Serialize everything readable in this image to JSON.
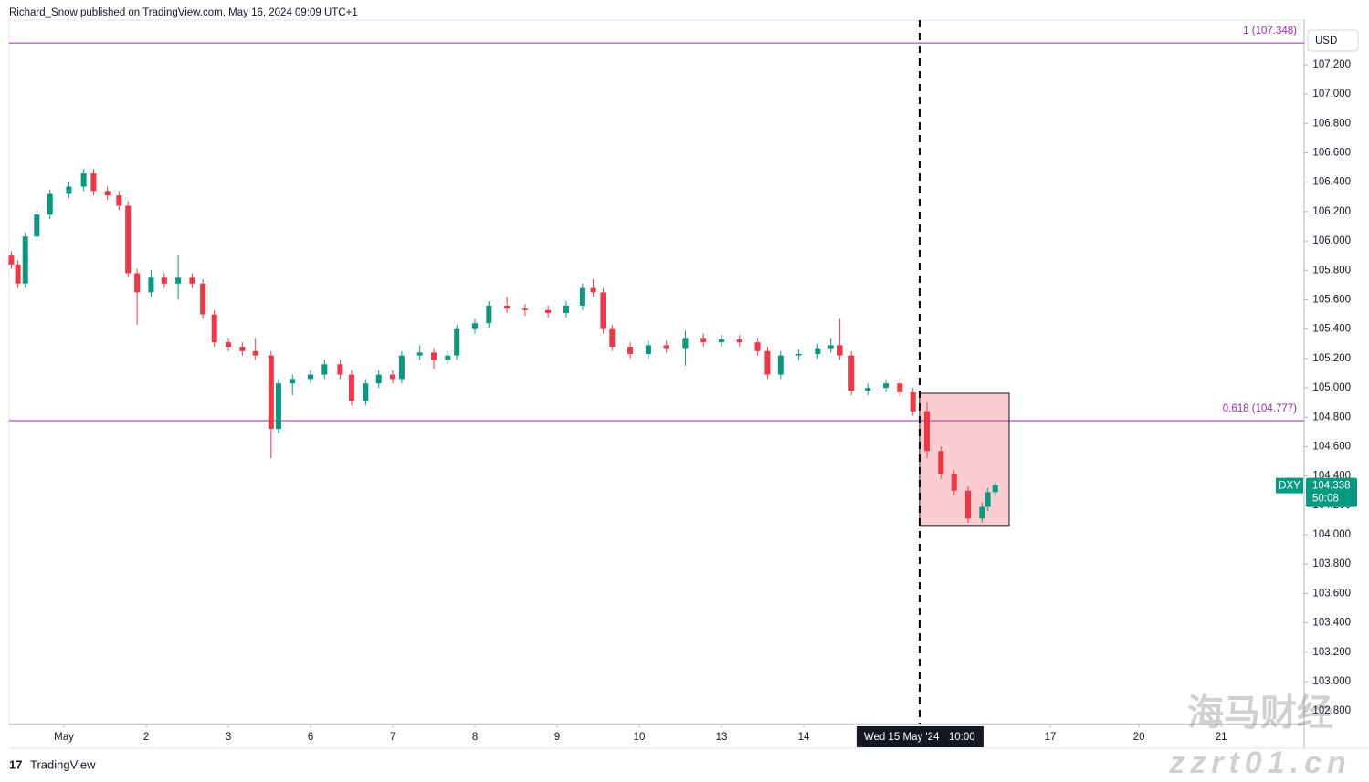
{
  "header": "Richard_Snow published on TradingView.com, May 16, 2024 09:09 UTC+1",
  "footer": "TradingView",
  "watermark": [
    "海马财经",
    "zzrt01.cn"
  ],
  "chart_data": {
    "type": "candlestick",
    "symbol": "DXY",
    "currency": "USD",
    "countdown": "50:08",
    "up_color": "#089981",
    "down_color": "#f23645",
    "level_color": "#9c27b0",
    "xlim": [
      -0.667,
      15.089
    ],
    "ylim": [
      102.714,
      107.504
    ],
    "xticks": [
      {
        "value": 0,
        "label": "May"
      },
      {
        "value": 1,
        "label": "2"
      },
      {
        "value": 2,
        "label": "3"
      },
      {
        "value": 3,
        "label": "6"
      },
      {
        "value": 4,
        "label": "7"
      },
      {
        "value": 5,
        "label": "8"
      },
      {
        "value": 6,
        "label": "9"
      },
      {
        "value": 7,
        "label": "10"
      },
      {
        "value": 8,
        "label": "13"
      },
      {
        "value": 9,
        "label": "14"
      },
      {
        "value": 12,
        "label": "17"
      },
      {
        "value": 13.08,
        "label": "20"
      },
      {
        "value": 14.08,
        "label": "21"
      }
    ],
    "yticks": [
      {
        "value": 102.8,
        "label": "102.800"
      },
      {
        "value": 103.0,
        "label": "103.000"
      },
      {
        "value": 103.2,
        "label": "103.200"
      },
      {
        "value": 103.4,
        "label": "103.400"
      },
      {
        "value": 103.6,
        "label": "103.600"
      },
      {
        "value": 103.8,
        "label": "103.800"
      },
      {
        "value": 104.0,
        "label": "104.000"
      },
      {
        "value": 104.2,
        "label": "104.200"
      },
      {
        "value": 104.4,
        "label": "104.400"
      },
      {
        "value": 104.6,
        "label": "104.600"
      },
      {
        "value": 104.8,
        "label": "104.800"
      },
      {
        "value": 105.0,
        "label": "105.000"
      },
      {
        "value": 105.2,
        "label": "105.200"
      },
      {
        "value": 105.4,
        "label": "105.400"
      },
      {
        "value": 105.6,
        "label": "105.600"
      },
      {
        "value": 105.8,
        "label": "105.800"
      },
      {
        "value": 106.0,
        "label": "106.000"
      },
      {
        "value": 106.2,
        "label": "106.200"
      },
      {
        "value": 106.4,
        "label": "106.400"
      },
      {
        "value": 106.6,
        "label": "106.600"
      },
      {
        "value": 106.8,
        "label": "106.800"
      },
      {
        "value": 107.0,
        "label": "107.000"
      },
      {
        "value": 107.2,
        "label": "107.200"
      }
    ],
    "levels": [
      {
        "value": 107.348,
        "label": "1 (107.348)"
      },
      {
        "value": 104.777,
        "label": "0.618 (104.777)"
      }
    ],
    "crosshair": {
      "x": 10.41,
      "date": "Wed 15 May '24",
      "time": "10:00"
    },
    "box": {
      "x": [
        10.41,
        11.5
      ],
      "y": [
        104.063,
        104.963
      ]
    },
    "x": [
      -0.64,
      -0.56,
      -0.47,
      -0.33,
      -0.17,
      0.06,
      0.24,
      0.36,
      0.53,
      0.67,
      0.78,
      0.89,
      1.06,
      1.22,
      1.39,
      1.56,
      1.69,
      1.83,
      2.0,
      2.17,
      2.33,
      2.52,
      2.61,
      2.78,
      3.0,
      3.17,
      3.36,
      3.5,
      3.67,
      3.83,
      4.0,
      4.11,
      4.33,
      4.5,
      4.67,
      4.78,
      5.0,
      5.17,
      5.39,
      5.61,
      5.89,
      6.11,
      6.31,
      6.44,
      6.56,
      6.67,
      6.89,
      7.11,
      7.33,
      7.56,
      7.78,
      8.0,
      8.22,
      8.44,
      8.56,
      8.72,
      8.94,
      9.17,
      9.33,
      9.44,
      9.58,
      9.78,
      10.0,
      10.17,
      10.33,
      10.5,
      10.67,
      10.83,
      11.0,
      11.17,
      11.24,
      11.33
    ],
    "open": [
      105.9,
      105.84,
      105.71,
      106.03,
      106.18,
      106.32,
      106.37,
      106.46,
      106.34,
      106.31,
      106.24,
      105.78,
      105.65,
      105.75,
      105.71,
      105.75,
      105.71,
      105.5,
      105.31,
      105.28,
      105.25,
      105.22,
      104.72,
      105.03,
      105.06,
      105.09,
      105.16,
      105.09,
      104.91,
      105.03,
      105.09,
      105.06,
      105.22,
      105.24,
      105.19,
      105.22,
      105.4,
      105.44,
      105.56,
      105.54,
      105.53,
      105.51,
      105.56,
      105.68,
      105.65,
      105.4,
      105.28,
      105.23,
      105.29,
      105.27,
      105.34,
      105.31,
      105.33,
      105.31,
      105.25,
      105.09,
      105.22,
      105.23,
      105.27,
      105.29,
      105.22,
      104.98,
      105.0,
      105.03,
      104.97,
      104.84,
      104.57,
      104.41,
      104.3,
      104.11,
      104.19,
      104.29
    ],
    "high": [
      105.93,
      105.87,
      106.06,
      106.21,
      106.35,
      106.4,
      106.49,
      106.49,
      106.37,
      106.34,
      106.27,
      105.81,
      105.8,
      105.78,
      105.9,
      105.78,
      105.74,
      105.53,
      105.34,
      105.31,
      105.34,
      105.25,
      105.06,
      105.09,
      105.12,
      105.19,
      105.19,
      105.12,
      105.06,
      105.12,
      105.12,
      105.25,
      105.29,
      105.27,
      105.25,
      105.43,
      105.47,
      105.59,
      105.62,
      105.57,
      105.56,
      105.59,
      105.71,
      105.74,
      105.68,
      105.43,
      105.31,
      105.32,
      105.32,
      105.39,
      105.37,
      105.36,
      105.36,
      105.34,
      105.28,
      105.25,
      105.26,
      105.3,
      105.34,
      105.47,
      105.25,
      105.03,
      105.06,
      105.06,
      105.0,
      104.9,
      104.6,
      104.44,
      104.33,
      104.22,
      104.32,
      104.36
    ],
    "low": [
      105.81,
      105.68,
      105.68,
      106.0,
      106.15,
      106.29,
      106.34,
      106.31,
      106.28,
      106.21,
      105.75,
      105.43,
      105.62,
      105.68,
      105.6,
      105.68,
      105.47,
      105.28,
      105.25,
      105.22,
      105.19,
      104.52,
      104.69,
      104.95,
      105.03,
      105.06,
      105.06,
      104.88,
      104.88,
      105.0,
      105.03,
      105.03,
      105.19,
      105.13,
      105.16,
      105.19,
      105.37,
      105.41,
      105.51,
      105.49,
      105.48,
      105.48,
      105.53,
      105.62,
      105.37,
      105.25,
      105.2,
      105.2,
      105.24,
      105.15,
      105.28,
      105.28,
      105.28,
      105.22,
      105.06,
      105.06,
      105.19,
      105.2,
      105.24,
      105.19,
      104.95,
      104.95,
      104.97,
      104.94,
      104.81,
      104.52,
      104.38,
      104.27,
      104.08,
      104.08,
      104.16,
      104.26
    ],
    "close": [
      105.84,
      105.71,
      106.03,
      106.18,
      106.32,
      106.37,
      106.46,
      106.34,
      106.31,
      106.24,
      105.78,
      105.65,
      105.75,
      105.71,
      105.75,
      105.71,
      105.5,
      105.31,
      105.28,
      105.25,
      105.22,
      104.72,
      105.03,
      105.06,
      105.09,
      105.16,
      105.09,
      104.91,
      105.03,
      105.09,
      105.06,
      105.22,
      105.24,
      105.19,
      105.22,
      105.4,
      105.44,
      105.56,
      105.54,
      105.53,
      105.51,
      105.56,
      105.68,
      105.65,
      105.4,
      105.28,
      105.23,
      105.29,
      105.27,
      105.34,
      105.31,
      105.33,
      105.31,
      105.25,
      105.09,
      105.22,
      105.23,
      105.27,
      105.29,
      105.22,
      104.98,
      105.0,
      105.03,
      104.97,
      104.84,
      104.57,
      104.41,
      104.3,
      104.11,
      104.19,
      104.29,
      104.338
    ]
  }
}
